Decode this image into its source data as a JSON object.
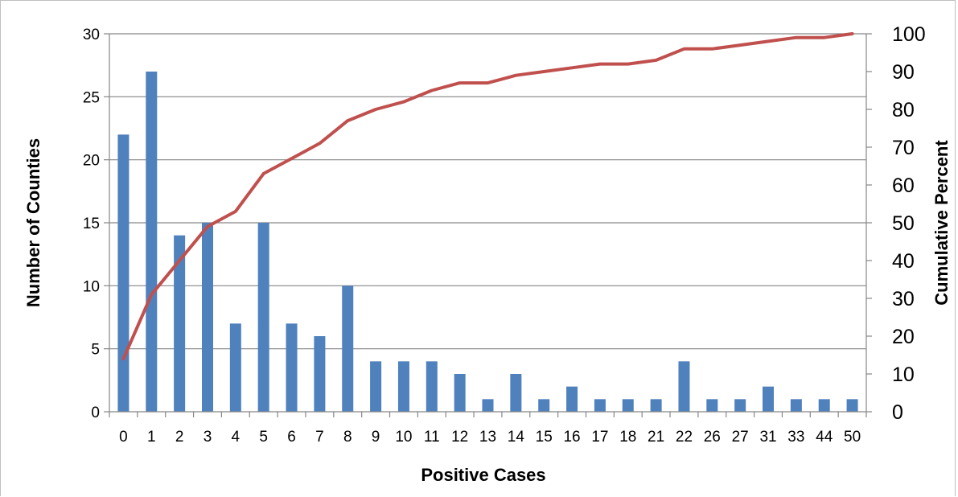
{
  "chart_data": {
    "type": "bar",
    "combo": "bar + line (secondary axis)",
    "categories": [
      "0",
      "1",
      "2",
      "3",
      "4",
      "5",
      "6",
      "7",
      "8",
      "9",
      "10",
      "11",
      "12",
      "13",
      "14",
      "15",
      "16",
      "17",
      "18",
      "21",
      "22",
      "26",
      "27",
      "31",
      "33",
      "44",
      "50"
    ],
    "series": [
      {
        "type": "bar",
        "axis": "primary",
        "color": "#4f81bd",
        "values": [
          22,
          27,
          14,
          15,
          7,
          15,
          7,
          6,
          10,
          4,
          4,
          4,
          3,
          1,
          3,
          1,
          2,
          1,
          1,
          1,
          4,
          1,
          1,
          2,
          1,
          1,
          1
        ]
      },
      {
        "type": "line",
        "axis": "secondary",
        "color": "#c0504d",
        "values": [
          14,
          31,
          40,
          49,
          53,
          63,
          67,
          71,
          77,
          80,
          82,
          85,
          87,
          87,
          89,
          90,
          91,
          92,
          92,
          93,
          96,
          96,
          97,
          98,
          99,
          99,
          100
        ]
      }
    ],
    "xlabel": "Positive Cases",
    "ylabel": "Number of Counties",
    "y2label": "Cumulative Percent",
    "ylim": [
      0,
      30
    ],
    "yticks": [
      0,
      5,
      10,
      15,
      20,
      25,
      30
    ],
    "y2lim": [
      0,
      100
    ],
    "y2ticks": [
      0,
      10,
      20,
      30,
      40,
      50,
      60,
      70,
      80,
      90,
      100
    ],
    "grid": true,
    "legend": "none"
  }
}
